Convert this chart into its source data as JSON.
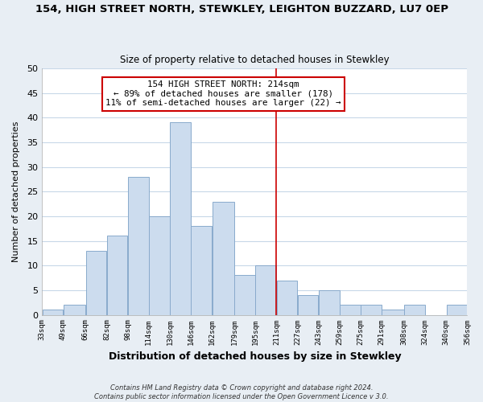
{
  "title": "154, HIGH STREET NORTH, STEWKLEY, LEIGHTON BUZZARD, LU7 0EP",
  "subtitle": "Size of property relative to detached houses in Stewkley",
  "xlabel": "Distribution of detached houses by size in Stewkley",
  "ylabel": "Number of detached properties",
  "bar_color": "#ccdcee",
  "bar_edgecolor": "#89aacc",
  "grid_color": "#c8d8e8",
  "vline_x_index": 11,
  "vline_color": "#cc0000",
  "bin_edges": [
    33,
    49,
    66,
    82,
    98,
    114,
    130,
    146,
    162,
    179,
    195,
    211,
    227,
    243,
    259,
    275,
    291,
    308,
    324,
    340,
    356
  ],
  "bin_labels": [
    "33sqm",
    "49sqm",
    "66sqm",
    "82sqm",
    "98sqm",
    "114sqm",
    "130sqm",
    "146sqm",
    "162sqm",
    "179sqm",
    "195sqm",
    "211sqm",
    "227sqm",
    "243sqm",
    "259sqm",
    "275sqm",
    "291sqm",
    "308sqm",
    "324sqm",
    "340sqm",
    "356sqm"
  ],
  "counts": [
    1,
    2,
    13,
    16,
    28,
    20,
    39,
    18,
    23,
    8,
    10,
    7,
    4,
    5,
    2,
    2,
    1,
    2,
    0,
    2
  ],
  "ylim": [
    0,
    50
  ],
  "yticks": [
    0,
    5,
    10,
    15,
    20,
    25,
    30,
    35,
    40,
    45,
    50
  ],
  "annotation_title": "154 HIGH STREET NORTH: 214sqm",
  "annotation_line1": "← 89% of detached houses are smaller (178)",
  "annotation_line2": "11% of semi-detached houses are larger (22) →",
  "annotation_box_color": "#ffffff",
  "annotation_box_edgecolor": "#cc0000",
  "footnote1": "Contains HM Land Registry data © Crown copyright and database right 2024.",
  "footnote2": "Contains public sector information licensed under the Open Government Licence v 3.0.",
  "outer_bg_color": "#e8eef4",
  "plot_bg_color": "#ffffff"
}
